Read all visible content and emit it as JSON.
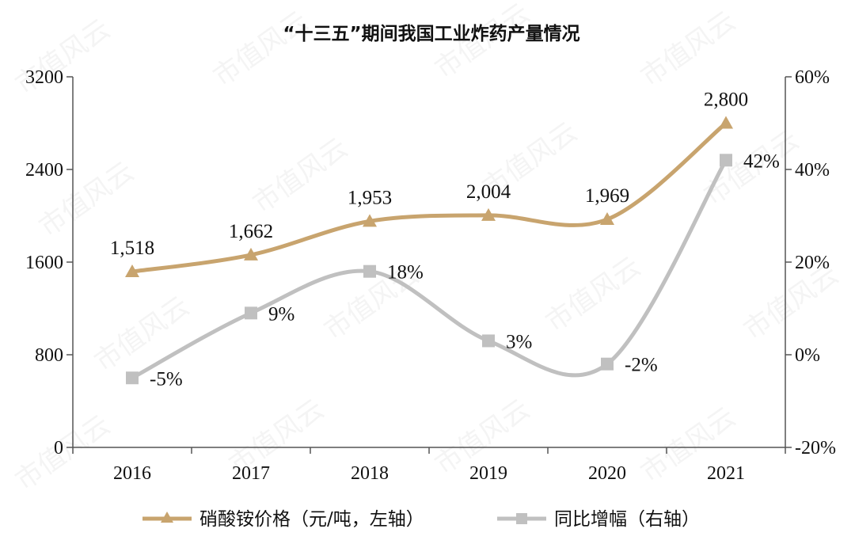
{
  "chart_data": {
    "type": "line",
    "title": "“十三五”期间我国工业炸药产量情况",
    "categories": [
      "2016",
      "2017",
      "2018",
      "2019",
      "2020",
      "2021"
    ],
    "y_left": {
      "ylim": [
        0,
        3200
      ],
      "ticks": [
        "0",
        "800",
        "1600",
        "2400",
        "3200"
      ],
      "tick_values": [
        0,
        800,
        1600,
        2400,
        3200
      ]
    },
    "y_right": {
      "ylim": [
        -20,
        60
      ],
      "ticks": [
        "-20%",
        "0%",
        "20%",
        "40%",
        "60%"
      ],
      "tick_values": [
        -20,
        0,
        20,
        40,
        60
      ]
    },
    "series": [
      {
        "name": "硝酸铵价格（元/吨，左轴）",
        "axis": "left",
        "marker": "triangle",
        "color": "#c8a46e",
        "values": [
          1518,
          1662,
          1953,
          2004,
          1969,
          2800
        ],
        "labels": [
          "1,518",
          "1,662",
          "1,953",
          "2,004",
          "1,969",
          "2,800"
        ]
      },
      {
        "name": "同比增幅（右轴）",
        "axis": "right",
        "marker": "square",
        "color": "#c0c0c0",
        "values": [
          -5,
          9,
          18,
          3,
          -2,
          42
        ],
        "labels": [
          "-5%",
          "9%",
          "18%",
          "3%",
          "-2%",
          "42%"
        ]
      }
    ],
    "grid": false,
    "legend_position": "bottom",
    "smooth": true
  },
  "watermark": {
    "text": "市值风云"
  }
}
